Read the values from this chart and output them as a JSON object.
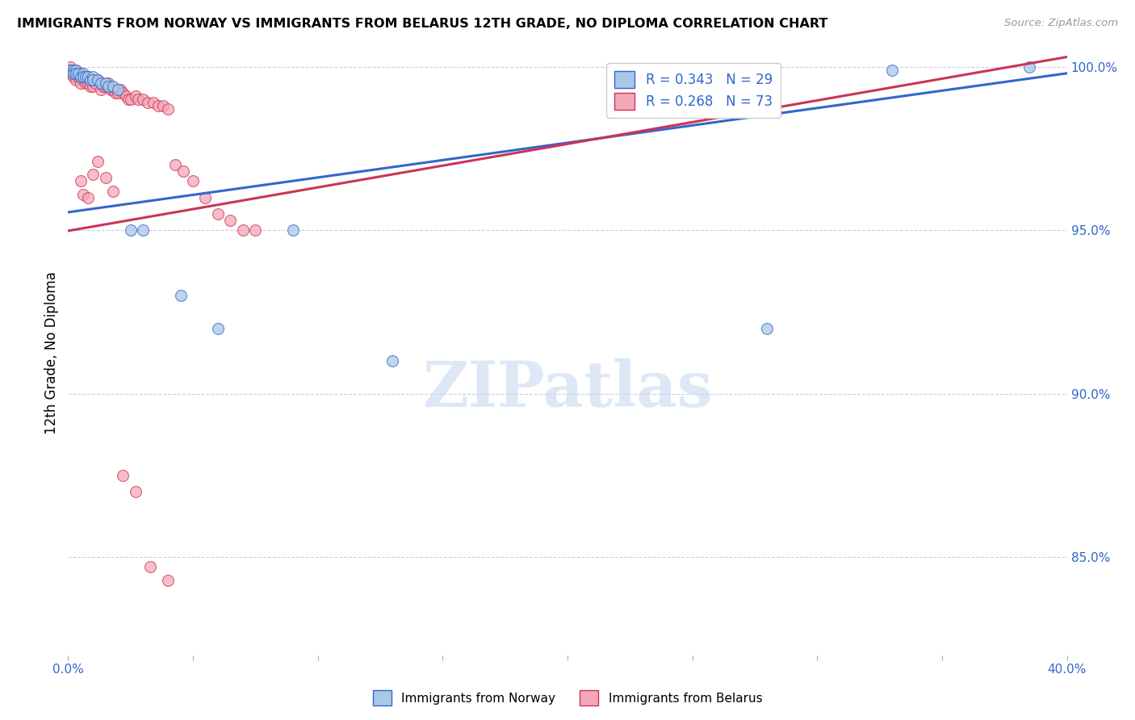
{
  "title": "IMMIGRANTS FROM NORWAY VS IMMIGRANTS FROM BELARUS 12TH GRADE, NO DIPLOMA CORRELATION CHART",
  "source": "Source: ZipAtlas.com",
  "ylabel_label": "12th Grade, No Diploma",
  "norway_color": "#a8c8e8",
  "belarus_color": "#f4a8b8",
  "norway_line_color": "#3366cc",
  "belarus_line_color": "#cc3355",
  "xlim": [
    0.0,
    0.4
  ],
  "ylim": [
    0.82,
    1.005
  ],
  "norway_x": [
    0.001,
    0.002,
    0.002,
    0.003,
    0.003,
    0.004,
    0.005,
    0.006,
    0.006,
    0.007,
    0.008,
    0.009,
    0.01,
    0.01,
    0.012,
    0.013,
    0.015,
    0.016,
    0.018,
    0.02,
    0.025,
    0.03,
    0.045,
    0.06,
    0.09,
    0.13,
    0.28,
    0.33,
    0.385
  ],
  "norway_y": [
    0.999,
    0.999,
    0.998,
    0.999,
    0.998,
    0.998,
    0.997,
    0.998,
    0.997,
    0.997,
    0.997,
    0.996,
    0.997,
    0.996,
    0.996,
    0.995,
    0.995,
    0.994,
    0.994,
    0.993,
    0.95,
    0.95,
    0.93,
    0.92,
    0.95,
    0.91,
    0.92,
    0.999,
    1.0
  ],
  "belarus_x": [
    0.001,
    0.001,
    0.001,
    0.001,
    0.002,
    0.002,
    0.002,
    0.002,
    0.003,
    0.003,
    0.003,
    0.003,
    0.004,
    0.004,
    0.005,
    0.005,
    0.005,
    0.006,
    0.006,
    0.007,
    0.007,
    0.007,
    0.008,
    0.008,
    0.008,
    0.009,
    0.009,
    0.01,
    0.01,
    0.011,
    0.012,
    0.013,
    0.013,
    0.014,
    0.015,
    0.016,
    0.016,
    0.017,
    0.018,
    0.019,
    0.02,
    0.021,
    0.022,
    0.023,
    0.024,
    0.025,
    0.027,
    0.028,
    0.03,
    0.032,
    0.034,
    0.036,
    0.038,
    0.04,
    0.043,
    0.046,
    0.05,
    0.055,
    0.06,
    0.065,
    0.07,
    0.075,
    0.005,
    0.006,
    0.008,
    0.01,
    0.012,
    0.015,
    0.018,
    0.022,
    0.027,
    0.033,
    0.04
  ],
  "belarus_y": [
    1.0,
    0.999,
    0.999,
    0.998,
    0.999,
    0.999,
    0.998,
    0.997,
    0.999,
    0.998,
    0.997,
    0.996,
    0.998,
    0.997,
    0.998,
    0.997,
    0.995,
    0.997,
    0.996,
    0.997,
    0.996,
    0.995,
    0.997,
    0.996,
    0.995,
    0.996,
    0.994,
    0.996,
    0.994,
    0.995,
    0.996,
    0.995,
    0.993,
    0.994,
    0.994,
    0.995,
    0.994,
    0.993,
    0.993,
    0.992,
    0.992,
    0.993,
    0.992,
    0.991,
    0.99,
    0.99,
    0.991,
    0.99,
    0.99,
    0.989,
    0.989,
    0.988,
    0.988,
    0.987,
    0.97,
    0.968,
    0.965,
    0.96,
    0.955,
    0.953,
    0.95,
    0.95,
    0.965,
    0.961,
    0.96,
    0.967,
    0.971,
    0.966,
    0.962,
    0.875,
    0.87,
    0.847,
    0.843
  ],
  "norway_trend_x": [
    0.0,
    0.4
  ],
  "norway_trend_y": [
    0.9555,
    0.998
  ],
  "belarus_trend_x": [
    0.0,
    0.4
  ],
  "belarus_trend_y": [
    0.9498,
    1.003
  ],
  "watermark_text": "ZIPatlas",
  "watermark_color": "#c8d8f0",
  "grid_color": "#ccccdd",
  "dot_size": 100,
  "dot_alpha": 0.75
}
